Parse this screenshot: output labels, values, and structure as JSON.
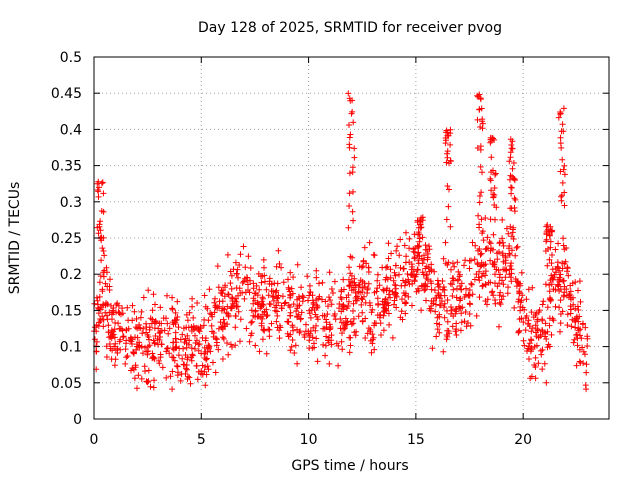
{
  "chart_data": {
    "type": "scatter",
    "title": "Day 128 of 2025, SRMTID for receiver pvog",
    "xlabel": "GPS time / hours",
    "ylabel": "SRMTID / TECUs",
    "xlim": [
      0,
      24
    ],
    "ylim": [
      0,
      0.5
    ],
    "xticks": [
      0,
      5,
      10,
      15,
      20
    ],
    "yticks": [
      0,
      0.05,
      0.1,
      0.15,
      0.2,
      0.25,
      0.3,
      0.35,
      0.4,
      0.45,
      0.5
    ],
    "xtick_labels": [
      "0",
      "5",
      "10",
      "15",
      "20"
    ],
    "ytick_labels": [
      "0",
      "0.05",
      "0.1",
      "0.15",
      "0.2",
      "0.25",
      "0.3",
      "0.35",
      "0.4",
      "0.45",
      "0.5"
    ],
    "grid": true,
    "marker": "+",
    "color": "#ff0000",
    "series": [
      {
        "name": "SRMTID",
        "trend_x": [
          0,
          0.2,
          0.35,
          0.5,
          1,
          2,
          3,
          4,
          5,
          5.5,
          6,
          7,
          8,
          8.6,
          9,
          10,
          10.5,
          11,
          11.5,
          12,
          12.5,
          13,
          14,
          15,
          15.5,
          16,
          16.5,
          17,
          17.5,
          18,
          18.5,
          19,
          19.5,
          20,
          20.5,
          21,
          21.5,
          22,
          22.5,
          23
        ],
        "trend_y": [
          0.12,
          0.14,
          0.19,
          0.15,
          0.12,
          0.1,
          0.11,
          0.1,
          0.1,
          0.12,
          0.15,
          0.17,
          0.15,
          0.17,
          0.15,
          0.14,
          0.15,
          0.13,
          0.14,
          0.16,
          0.17,
          0.16,
          0.18,
          0.2,
          0.2,
          0.16,
          0.15,
          0.16,
          0.18,
          0.22,
          0.21,
          0.2,
          0.25,
          0.14,
          0.11,
          0.1,
          0.2,
          0.17,
          0.13,
          0.09
        ],
        "spikes": [
          {
            "x": 0.3,
            "y": 0.33
          },
          {
            "x": 12.0,
            "y": 0.46
          },
          {
            "x": 16.5,
            "y": 0.4
          },
          {
            "x": 18.0,
            "y": 0.45
          },
          {
            "x": 18.6,
            "y": 0.39
          },
          {
            "x": 19.5,
            "y": 0.39
          },
          {
            "x": 21.8,
            "y": 0.43
          },
          {
            "x": 15.2,
            "y": 0.28
          },
          {
            "x": 21.2,
            "y": 0.28
          }
        ]
      }
    ]
  }
}
